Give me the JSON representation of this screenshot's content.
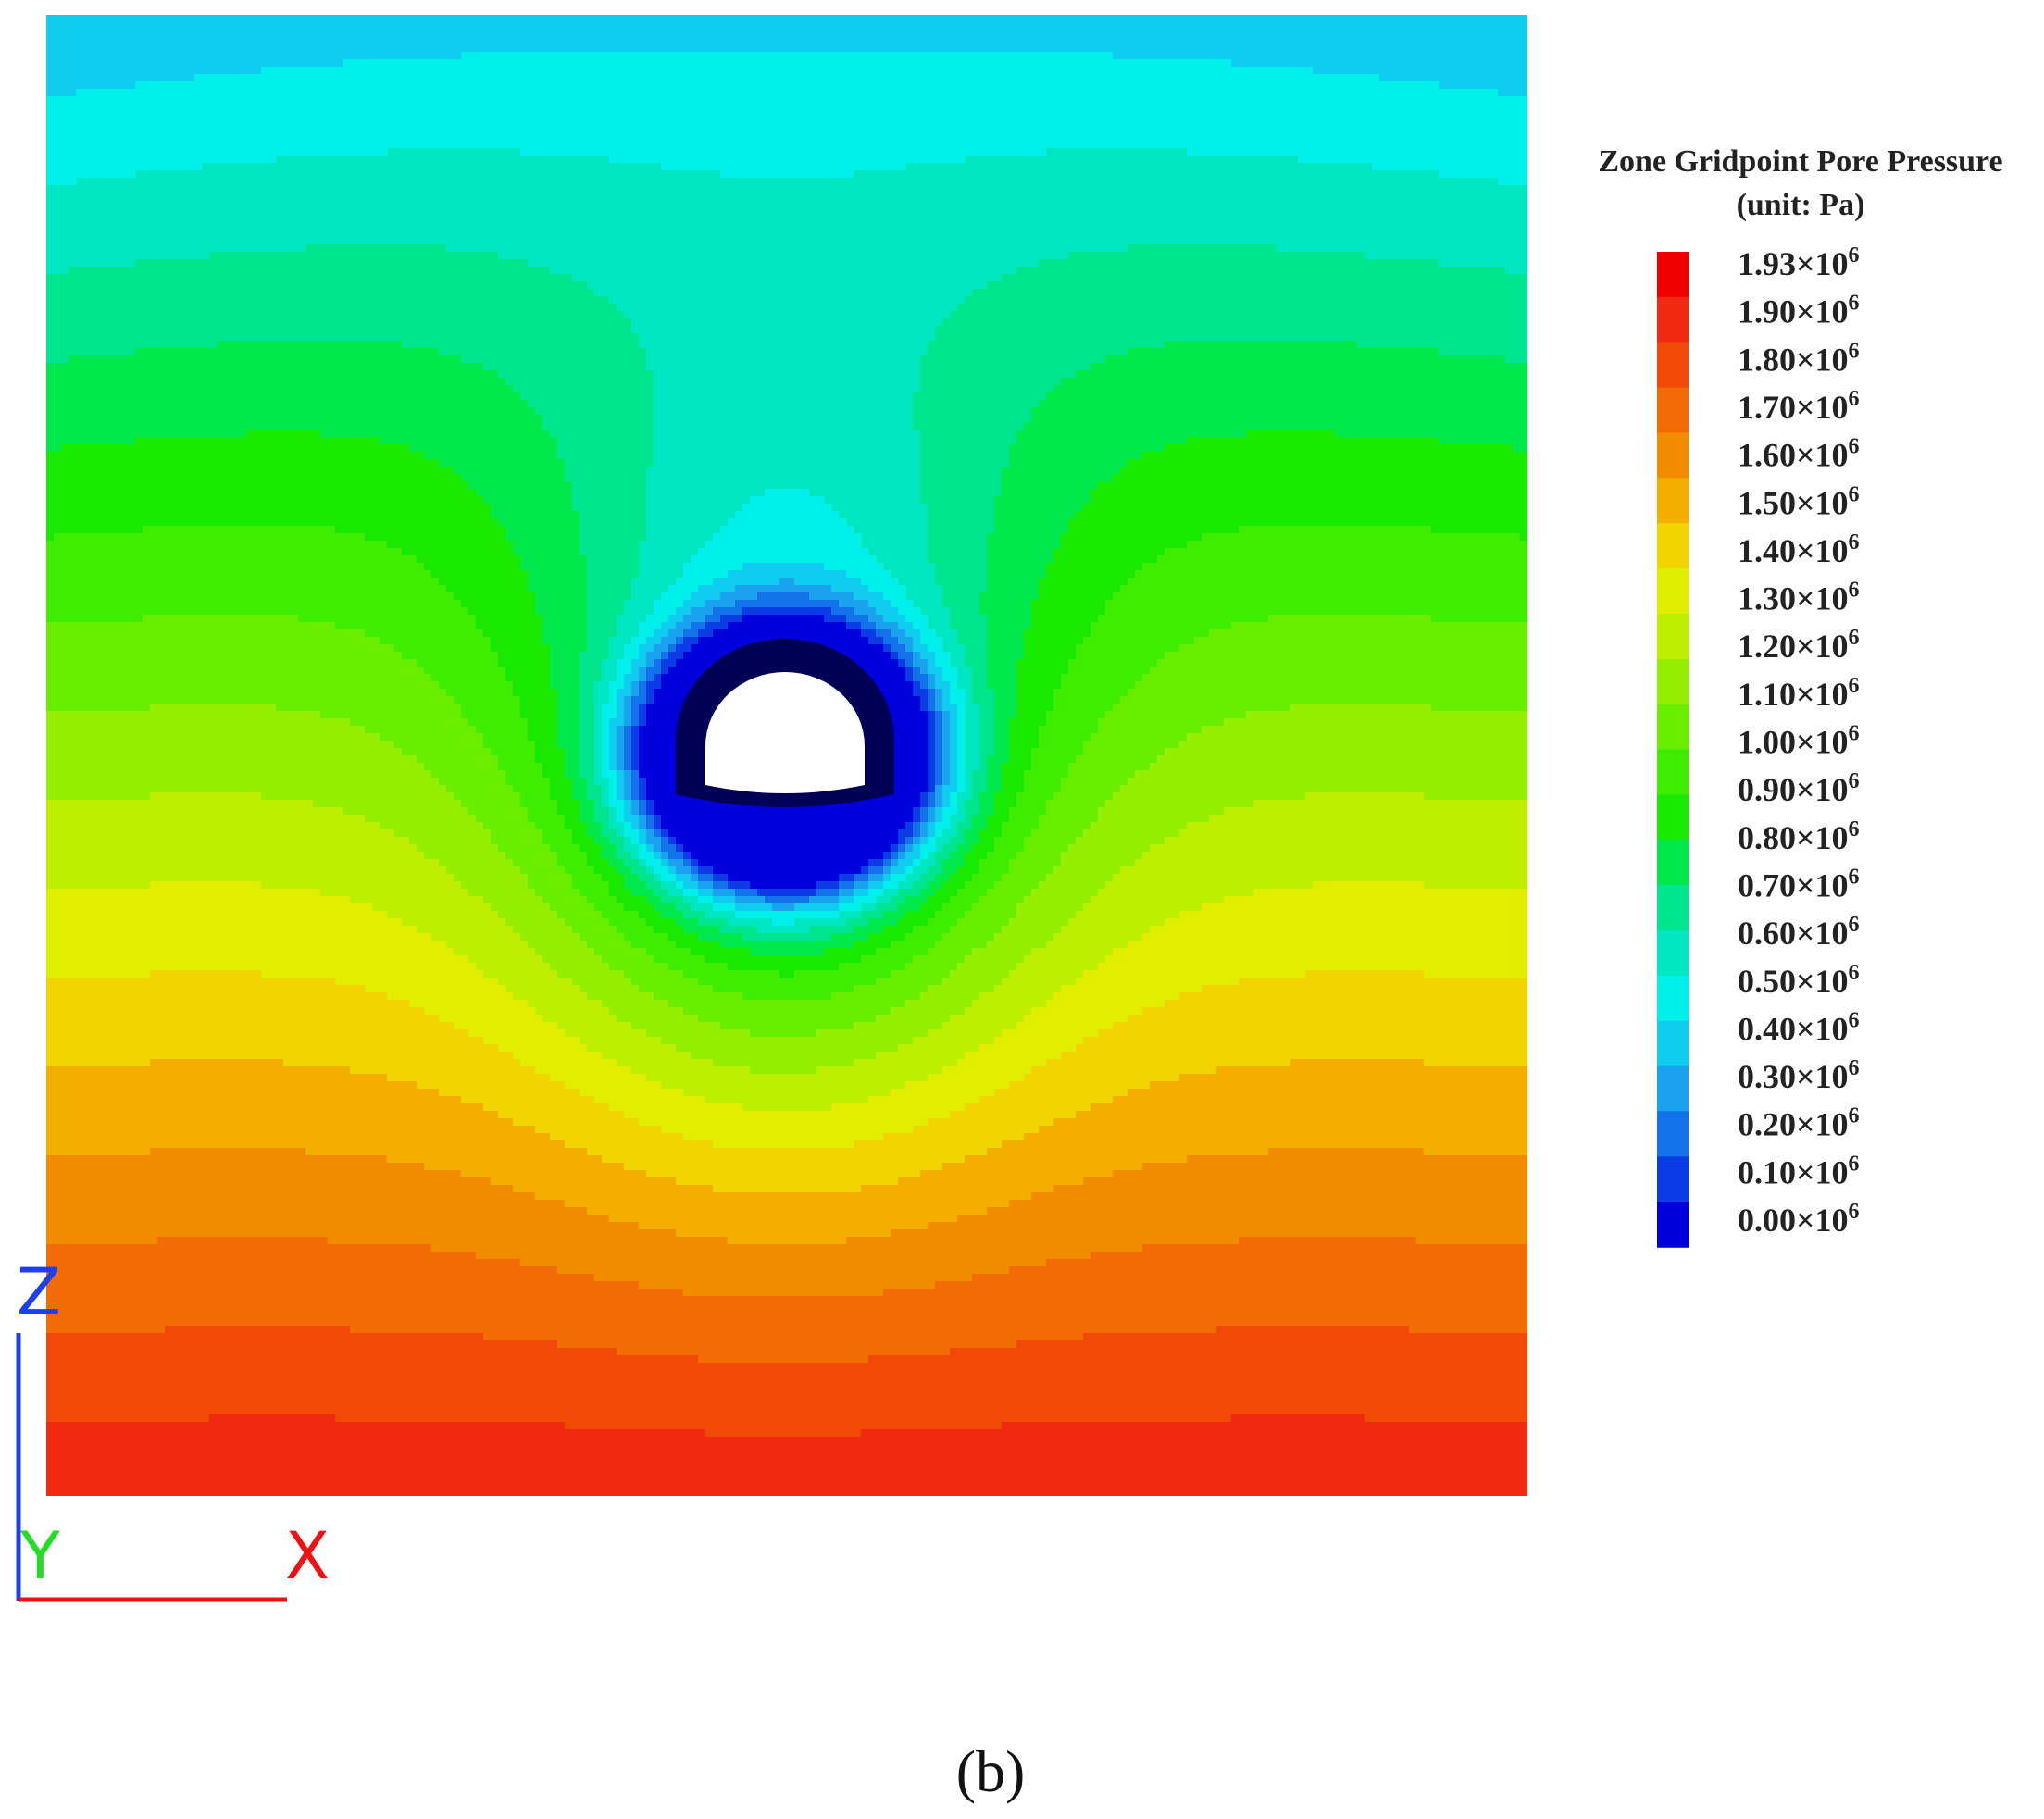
{
  "chart_data": {
    "type": "heatmap",
    "title": "Zone Gridpoint Pore Pressure",
    "subtitle": "(unit: Pa)",
    "colorbar": {
      "placement": "right",
      "ticks": [
        {
          "value": 1.93,
          "mantissa": "1.93",
          "exp": "6"
        },
        {
          "value": 1.9,
          "mantissa": "1.90",
          "exp": "6"
        },
        {
          "value": 1.8,
          "mantissa": "1.80",
          "exp": "6"
        },
        {
          "value": 1.7,
          "mantissa": "1.70",
          "exp": "6"
        },
        {
          "value": 1.6,
          "mantissa": "1.60",
          "exp": "6"
        },
        {
          "value": 1.5,
          "mantissa": "1.50",
          "exp": "6"
        },
        {
          "value": 1.4,
          "mantissa": "1.40",
          "exp": "6"
        },
        {
          "value": 1.3,
          "mantissa": "1.30",
          "exp": "6"
        },
        {
          "value": 1.2,
          "mantissa": "1.20",
          "exp": "6"
        },
        {
          "value": 1.1,
          "mantissa": "1.10",
          "exp": "6"
        },
        {
          "value": 1.0,
          "mantissa": "1.00",
          "exp": "6"
        },
        {
          "value": 0.9,
          "mantissa": "0.90",
          "exp": "6"
        },
        {
          "value": 0.8,
          "mantissa": "0.80",
          "exp": "6"
        },
        {
          "value": 0.7,
          "mantissa": "0.70",
          "exp": "6"
        },
        {
          "value": 0.6,
          "mantissa": "0.60",
          "exp": "6"
        },
        {
          "value": 0.5,
          "mantissa": "0.50",
          "exp": "6"
        },
        {
          "value": 0.4,
          "mantissa": "0.40",
          "exp": "6"
        },
        {
          "value": 0.3,
          "mantissa": "0.30",
          "exp": "6"
        },
        {
          "value": 0.2,
          "mantissa": "0.20",
          "exp": "6"
        },
        {
          "value": 0.1,
          "mantissa": "0.10",
          "exp": "6"
        },
        {
          "value": 0.0,
          "mantissa": "0.00",
          "exp": "6"
        }
      ],
      "times_sign": "×10",
      "colors_top_to_bottom": [
        "#ee0000",
        "#f02a10",
        "#f14a08",
        "#f26b05",
        "#f28c00",
        "#f4ae00",
        "#f2d400",
        "#e2ee00",
        "#bfef00",
        "#96ef00",
        "#6aee00",
        "#3fed00",
        "#19e900",
        "#00e84c",
        "#00e58e",
        "#00e7c1",
        "#00f0ec",
        "#10cdf0",
        "#1aa2ee",
        "#1372ea",
        "#0b3ce6",
        "#0000dd"
      ]
    },
    "axis_triad": {
      "z": "Z",
      "y": "Y",
      "x": "X",
      "z_color": "#1e3ff0",
      "y_color": "#22dd22",
      "x_color": "#ee1111"
    },
    "caption": "(b)"
  }
}
